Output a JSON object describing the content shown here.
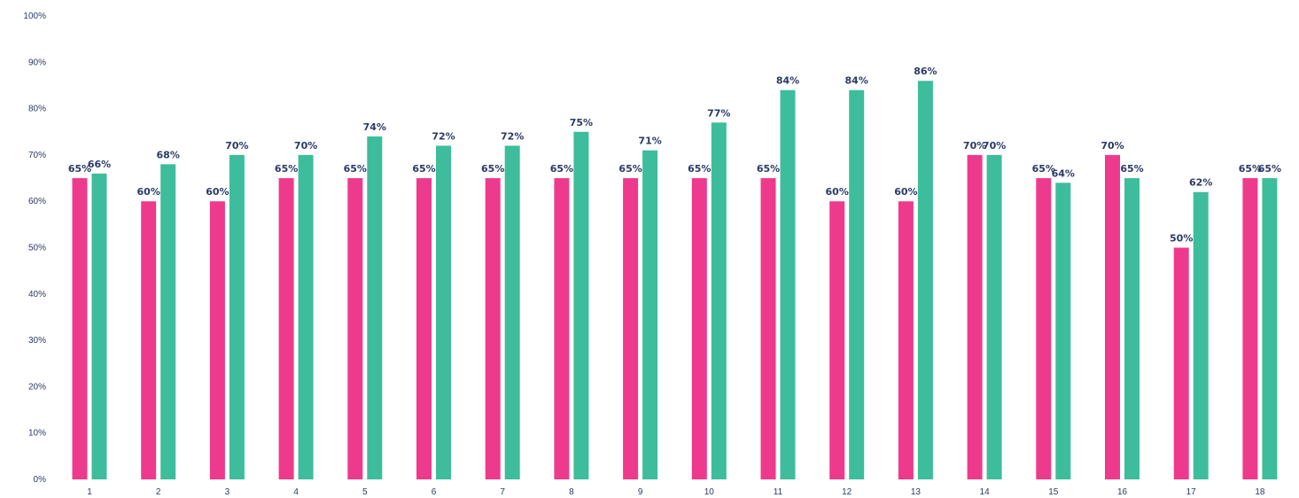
{
  "chart_data": {
    "type": "bar",
    "categories": [
      "1",
      "2",
      "3",
      "4",
      "5",
      "6",
      "7",
      "8",
      "9",
      "10",
      "11",
      "12",
      "13",
      "14",
      "15",
      "16",
      "17",
      "18"
    ],
    "series": [
      {
        "color": "#ee3a8c",
        "values": [
          65,
          60,
          60,
          65,
          65,
          65,
          65,
          65,
          65,
          65,
          65,
          60,
          60,
          70,
          65,
          70,
          50,
          65
        ],
        "labels": [
          "65%",
          "60%",
          "60%",
          "65%",
          "65%",
          "65%",
          "65%",
          "65%",
          "65%",
          "65%",
          "65%",
          "60%",
          "60%",
          "70%",
          "65%",
          "70%",
          "50%",
          "65%"
        ]
      },
      {
        "color": "#3dbd9b",
        "values": [
          66,
          68,
          70,
          70,
          74,
          72,
          72,
          75,
          71,
          77,
          84,
          84,
          86,
          70,
          64,
          65,
          62,
          65
        ],
        "labels": [
          "66%",
          "68%",
          "70%",
          "70%",
          "74%",
          "72%",
          "72%",
          "75%",
          "71%",
          "77%",
          "84%",
          "84%",
          "86%",
          "70%",
          "64%",
          "65%",
          "62%",
          "65%"
        ]
      }
    ],
    "ylim": [
      0,
      100
    ],
    "yticks": [
      "0%",
      "10%",
      "20%",
      "30%",
      "40%",
      "50%",
      "60%",
      "70%",
      "80%",
      "90%",
      "100%"
    ],
    "grid": false,
    "legend": "none",
    "title": "",
    "xlabel": "",
    "ylabel": ""
  }
}
